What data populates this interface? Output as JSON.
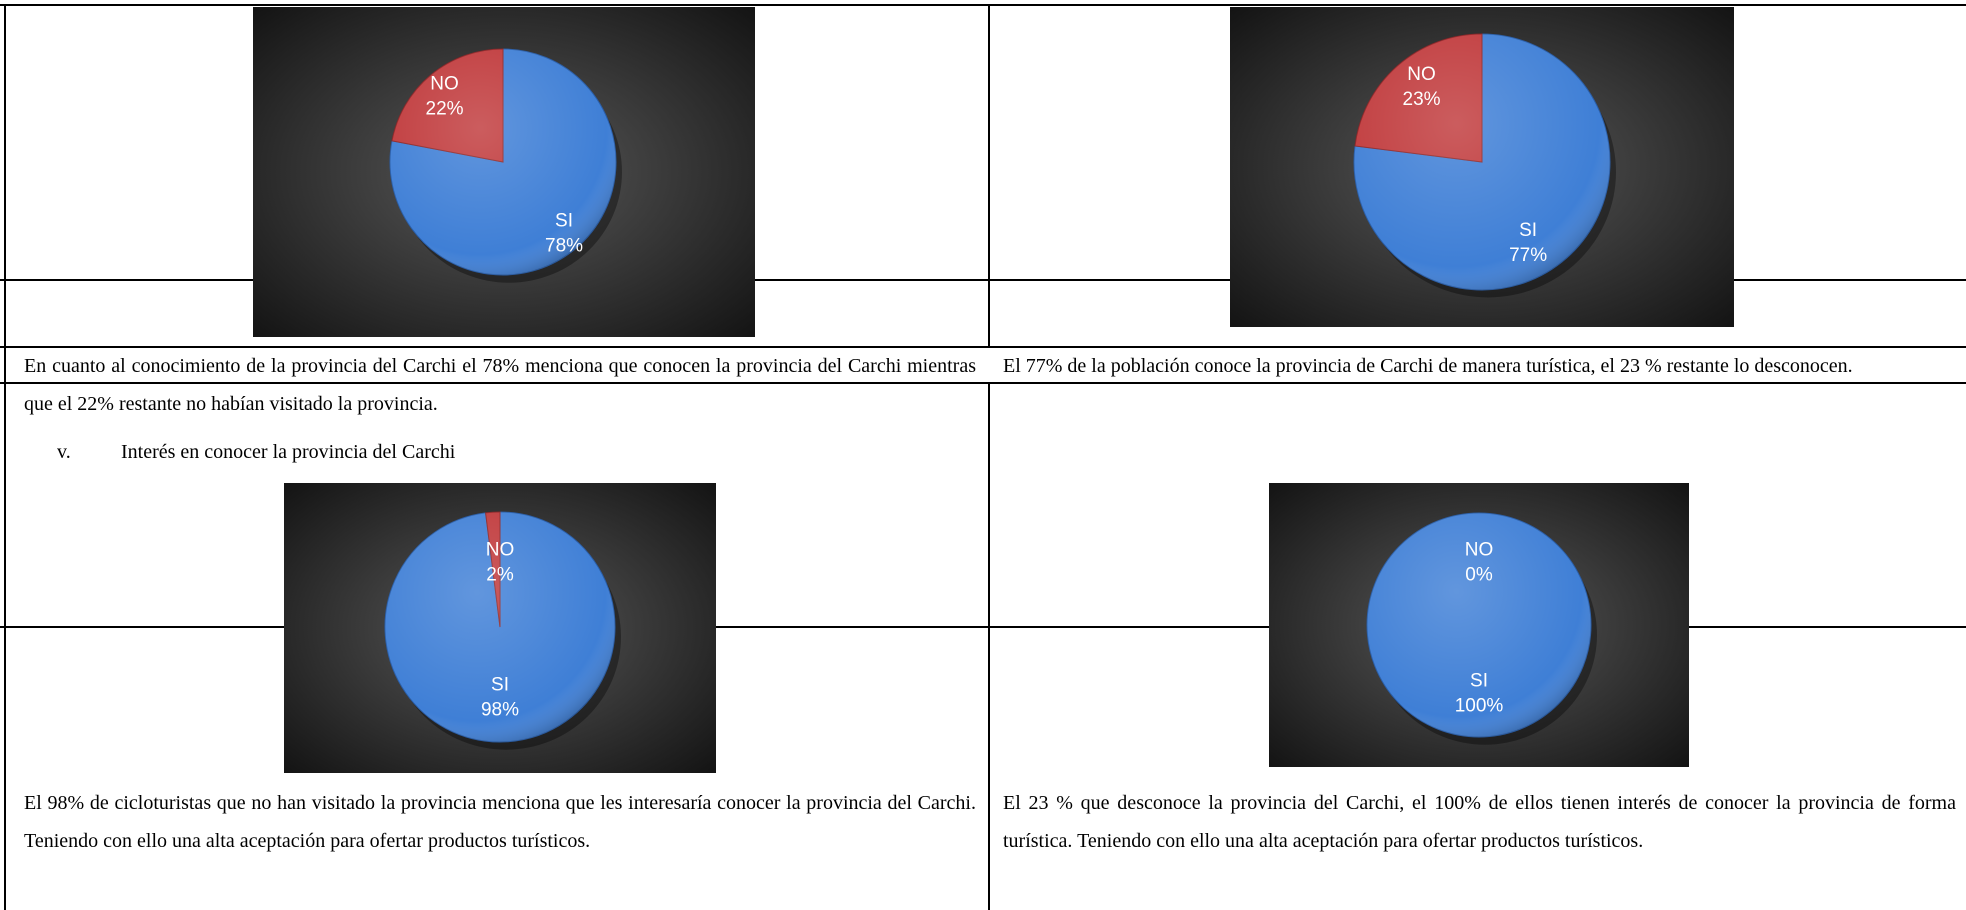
{
  "section_heading": {
    "marker": "v.",
    "text": "Interés en conocer la provincia del Carchi"
  },
  "captions": {
    "c1": "En cuanto al conocimiento de la provincia del Carchi  el 78%  menciona que conocen la provincia del Carchi mientras que el 22% restante no habían visitado la provincia.",
    "c2": "El 77% de la población conoce la provincia de Carchi de manera turística, el 23 % restante lo desconocen.",
    "c3": "El 98% de cicloturistas que no han visitado la provincia menciona que les interesaría conocer la provincia del Carchi. Teniendo con ello una alta aceptación para ofertar productos turísticos.",
    "c4": "El 23 % que desconoce la provincia del Carchi, el 100% de ellos tienen interés de conocer la provincia de forma turística.  Teniendo con ello una alta aceptación para ofertar productos turísticos."
  },
  "chart_data": [
    {
      "type": "pie",
      "slices": [
        {
          "label": "SI",
          "value": 78,
          "display": "78%",
          "color": "#3f7fd6"
        },
        {
          "label": "NO",
          "value": 22,
          "display": "22%",
          "color": "#c0393b"
        }
      ]
    },
    {
      "type": "pie",
      "slices": [
        {
          "label": "SI",
          "value": 77,
          "display": "77%",
          "color": "#3f7fd6"
        },
        {
          "label": "NO",
          "value": 23,
          "display": "23%",
          "color": "#c0393b"
        }
      ]
    },
    {
      "type": "pie",
      "slices": [
        {
          "label": "SI",
          "value": 98,
          "display": "98%",
          "color": "#3f7fd6"
        },
        {
          "label": "NO",
          "value": 2,
          "display": "2%",
          "color": "#c0393b"
        }
      ]
    },
    {
      "type": "pie",
      "slices": [
        {
          "label": "SI",
          "value": 100,
          "display": "100%",
          "color": "#3f7fd6"
        },
        {
          "label": "NO",
          "value": 0,
          "display": "0%",
          "color": "#c0393b"
        }
      ]
    }
  ]
}
